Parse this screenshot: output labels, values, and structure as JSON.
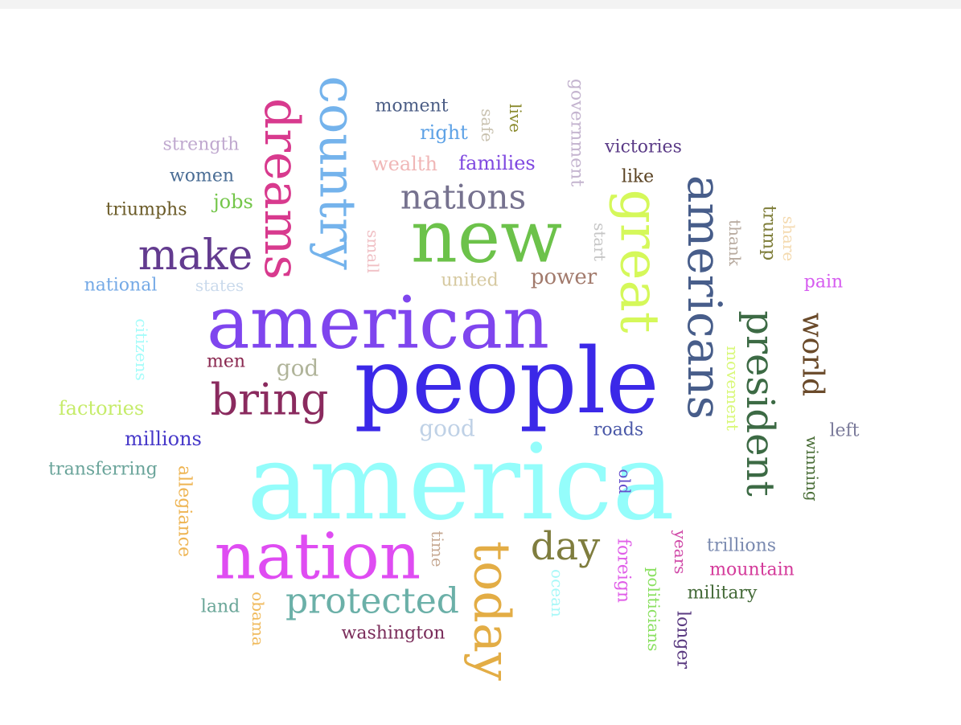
{
  "words": [
    {
      "text": "america",
      "color": "#94fdfb"
    },
    {
      "text": "people",
      "color": "#3b28e8"
    },
    {
      "text": "american",
      "color": "#7f45ee"
    },
    {
      "text": "nation",
      "color": "#df4cf2"
    },
    {
      "text": "new",
      "color": "#6cc24a"
    },
    {
      "text": "today",
      "color": "#e3ad45"
    },
    {
      "text": "country",
      "color": "#74b3ec"
    },
    {
      "text": "dreams",
      "color": "#d83a8e"
    },
    {
      "text": "great",
      "color": "#d5f85a"
    },
    {
      "text": "americans",
      "color": "#475d8a"
    },
    {
      "text": "president",
      "color": "#3c6a44"
    },
    {
      "text": "make",
      "color": "#633b8f"
    },
    {
      "text": "bring",
      "color": "#8a2a5e"
    },
    {
      "text": "protected",
      "color": "#6bb0a8"
    },
    {
      "text": "nations",
      "color": "#76728f"
    },
    {
      "text": "day",
      "color": "#7f7d3e"
    },
    {
      "text": "world",
      "color": "#6a4a2a"
    },
    {
      "text": "moment",
      "color": "#4c5e86"
    },
    {
      "text": "right",
      "color": "#5ea2e6"
    },
    {
      "text": "safe",
      "color": "#c9c2b0"
    },
    {
      "text": "live",
      "color": "#8a8a2d"
    },
    {
      "text": "government",
      "color": "#c4b4cf"
    },
    {
      "text": "victories",
      "color": "#5a3a86"
    },
    {
      "text": "strength",
      "color": "#c0a9cf"
    },
    {
      "text": "women",
      "color": "#4a6d95"
    },
    {
      "text": "wealth",
      "color": "#f0b7b7"
    },
    {
      "text": "families",
      "color": "#7f48e0"
    },
    {
      "text": "like",
      "color": "#5a4222"
    },
    {
      "text": "triumphs",
      "color": "#6a5a26"
    },
    {
      "text": "jobs",
      "color": "#74c64a"
    },
    {
      "text": "small",
      "color": "#f0c0c5"
    },
    {
      "text": "start",
      "color": "#c6c6c6"
    },
    {
      "text": "thank",
      "color": "#b8aba0"
    },
    {
      "text": "trump",
      "color": "#7e7d38"
    },
    {
      "text": "share",
      "color": "#f4dab0"
    },
    {
      "text": "national",
      "color": "#74a9e6"
    },
    {
      "text": "states",
      "color": "#cadaec"
    },
    {
      "text": "united",
      "color": "#d6c9a0"
    },
    {
      "text": "power",
      "color": "#a27a6c"
    },
    {
      "text": "pain",
      "color": "#d65cf0"
    },
    {
      "text": "citizens",
      "color": "#a6fcfa"
    },
    {
      "text": "men",
      "color": "#8a2850"
    },
    {
      "text": "god",
      "color": "#b0b49a"
    },
    {
      "text": "movement",
      "color": "#d9f87a"
    },
    {
      "text": "factories",
      "color": "#c6ec6a"
    },
    {
      "text": "good",
      "color": "#bfd1e6"
    },
    {
      "text": "roads",
      "color": "#4a58a8"
    },
    {
      "text": "left",
      "color": "#7a7a9a"
    },
    {
      "text": "millions",
      "color": "#4638c9"
    },
    {
      "text": "winning",
      "color": "#4a6e38"
    },
    {
      "text": "transferring",
      "color": "#6aa49a"
    },
    {
      "text": "allegiance",
      "color": "#eeb452"
    },
    {
      "text": "old",
      "color": "#6650cc"
    },
    {
      "text": "time",
      "color": "#c7aa94"
    },
    {
      "text": "years",
      "color": "#d04aa8"
    },
    {
      "text": "trillions",
      "color": "#7a8ab0"
    },
    {
      "text": "mountain",
      "color": "#d43a9a"
    },
    {
      "text": "foreign",
      "color": "#e05ee8"
    },
    {
      "text": "ocean",
      "color": "#a8f8f8"
    },
    {
      "text": "politicians",
      "color": "#8ae060"
    },
    {
      "text": "military",
      "color": "#446a38"
    },
    {
      "text": "land",
      "color": "#6aa698"
    },
    {
      "text": "obama",
      "color": "#f0ba5c"
    },
    {
      "text": "washington",
      "color": "#7a2c5a"
    },
    {
      "text": "longer",
      "color": "#5a3a80"
    }
  ]
}
